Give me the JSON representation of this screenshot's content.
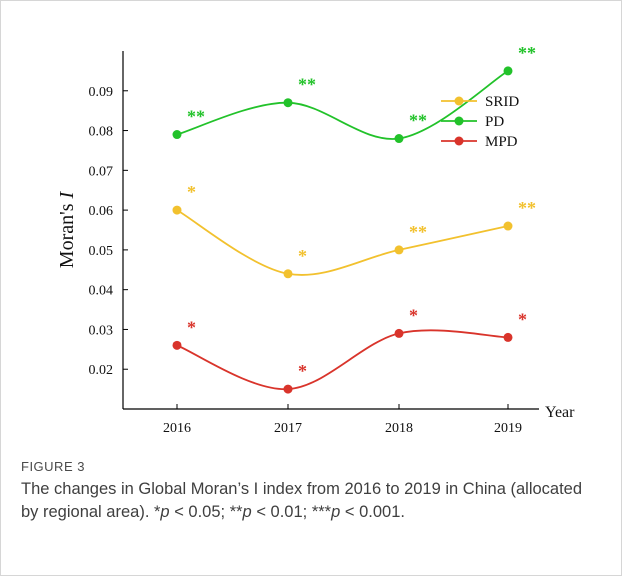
{
  "chart_data": {
    "type": "line",
    "x": [
      2016,
      2017,
      2018,
      2019
    ],
    "xlabel": "Year",
    "ylabel": "Moran's I",
    "ylim": [
      0.01,
      0.1
    ],
    "yticks": [
      "0.02",
      "0.03",
      "0.04",
      "0.05",
      "0.06",
      "0.07",
      "0.08",
      "0.09"
    ],
    "ytick_values": [
      0.02,
      0.03,
      0.04,
      0.05,
      0.06,
      0.07,
      0.08,
      0.09
    ],
    "grid": false,
    "legend": "top-right",
    "series": [
      {
        "name": "SRID",
        "color": "#f2c12e",
        "values": [
          0.06,
          0.044,
          0.05,
          0.056
        ],
        "labels": [
          "*",
          "*",
          "**",
          "**"
        ]
      },
      {
        "name": "PD",
        "color": "#22c22a",
        "values": [
          0.079,
          0.087,
          0.078,
          0.095
        ],
        "labels": [
          "**",
          "**",
          "**",
          "**"
        ]
      },
      {
        "name": "MPD",
        "color": "#d9342b",
        "values": [
          0.026,
          0.015,
          0.029,
          0.028
        ],
        "labels": [
          "*",
          "*",
          "*",
          "*"
        ]
      }
    ]
  },
  "caption": {
    "label": "FIGURE 3",
    "text_before": "The changes in Global Moran’s I index from 2016 to 2019 in China (allocated by regional area). *",
    "p1": "p",
    "t1": " < 0.05; **",
    "p2": "p",
    "t2": " < 0.01; ***",
    "p3": "p",
    "t3": " < 0.001."
  }
}
